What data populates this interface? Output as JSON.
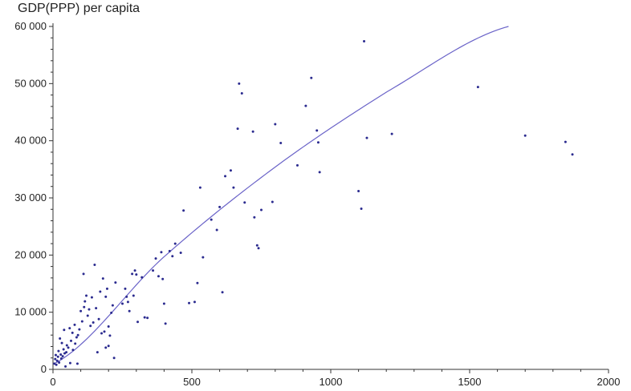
{
  "chart_data": {
    "type": "scatter",
    "title": "",
    "ylabel": "GDP(PPP) per capita",
    "xlabel": "",
    "xlim": [
      0,
      2000
    ],
    "ylim": [
      0,
      60000
    ],
    "xticks": [
      0,
      500,
      1000,
      1500,
      2000
    ],
    "xtick_labels": [
      "0",
      "500",
      "1000",
      "1500",
      "2000"
    ],
    "yticks": [
      0,
      10000,
      20000,
      30000,
      40000,
      50000,
      60000
    ],
    "ytick_labels": [
      "0",
      "10 000",
      "20 000",
      "30 000",
      "40 000",
      "50 000",
      "60 000"
    ],
    "grid": false,
    "colors": {
      "points": "#2b2b8f",
      "curve": "#6a63c8",
      "axis": "#333333"
    },
    "points": [
      [
        5,
        1000
      ],
      [
        8,
        1800
      ],
      [
        10,
        2500
      ],
      [
        12,
        800
      ],
      [
        15,
        1500
      ],
      [
        18,
        2200
      ],
      [
        20,
        3200
      ],
      [
        22,
        1200
      ],
      [
        25,
        5400
      ],
      [
        28,
        2600
      ],
      [
        30,
        1900
      ],
      [
        32,
        4600
      ],
      [
        35,
        2300
      ],
      [
        38,
        3500
      ],
      [
        40,
        6900
      ],
      [
        42,
        2800
      ],
      [
        45,
        500
      ],
      [
        48,
        3000
      ],
      [
        50,
        4200
      ],
      [
        55,
        3800
      ],
      [
        60,
        7200
      ],
      [
        62,
        1100
      ],
      [
        65,
        5000
      ],
      [
        70,
        6400
      ],
      [
        72,
        3400
      ],
      [
        78,
        7800
      ],
      [
        80,
        4500
      ],
      [
        85,
        5600
      ],
      [
        88,
        1000
      ],
      [
        90,
        6000
      ],
      [
        95,
        7000
      ],
      [
        100,
        10200
      ],
      [
        105,
        8400
      ],
      [
        110,
        16700
      ],
      [
        112,
        10900
      ],
      [
        115,
        11900
      ],
      [
        120,
        12900
      ],
      [
        125,
        9400
      ],
      [
        130,
        10500
      ],
      [
        135,
        7600
      ],
      [
        140,
        12600
      ],
      [
        145,
        8200
      ],
      [
        150,
        18300
      ],
      [
        155,
        10700
      ],
      [
        160,
        3000
      ],
      [
        165,
        8800
      ],
      [
        170,
        13600
      ],
      [
        175,
        6300
      ],
      [
        180,
        15900
      ],
      [
        185,
        6600
      ],
      [
        190,
        12700
      ],
      [
        195,
        14100
      ],
      [
        200,
        7500
      ],
      [
        205,
        5900
      ],
      [
        210,
        9900
      ],
      [
        215,
        11200
      ],
      [
        220,
        2000
      ],
      [
        225,
        15200
      ],
      [
        190,
        3800
      ],
      [
        200,
        4100
      ],
      [
        250,
        11500
      ],
      [
        260,
        14100
      ],
      [
        265,
        12700
      ],
      [
        270,
        11800
      ],
      [
        275,
        10200
      ],
      [
        285,
        16700
      ],
      [
        290,
        12900
      ],
      [
        295,
        17300
      ],
      [
        300,
        16600
      ],
      [
        305,
        8300
      ],
      [
        320,
        16100
      ],
      [
        330,
        9100
      ],
      [
        340,
        9000
      ],
      [
        360,
        17300
      ],
      [
        370,
        19400
      ],
      [
        380,
        16300
      ],
      [
        390,
        20500
      ],
      [
        395,
        15800
      ],
      [
        400,
        11500
      ],
      [
        405,
        8000
      ],
      [
        420,
        20700
      ],
      [
        430,
        19800
      ],
      [
        440,
        22000
      ],
      [
        460,
        20400
      ],
      [
        470,
        27800
      ],
      [
        490,
        11600
      ],
      [
        510,
        11800
      ],
      [
        520,
        15100
      ],
      [
        530,
        31800
      ],
      [
        540,
        19600
      ],
      [
        570,
        26200
      ],
      [
        590,
        24400
      ],
      [
        600,
        28400
      ],
      [
        610,
        13500
      ],
      [
        620,
        33800
      ],
      [
        640,
        34800
      ],
      [
        650,
        31800
      ],
      [
        665,
        42100
      ],
      [
        670,
        50000
      ],
      [
        680,
        48300
      ],
      [
        690,
        29200
      ],
      [
        720,
        41600
      ],
      [
        725,
        26600
      ],
      [
        735,
        21700
      ],
      [
        740,
        21200
      ],
      [
        750,
        27900
      ],
      [
        790,
        29300
      ],
      [
        800,
        42900
      ],
      [
        820,
        39600
      ],
      [
        880,
        35700
      ],
      [
        910,
        46100
      ],
      [
        930,
        51000
      ],
      [
        950,
        41800
      ],
      [
        955,
        39700
      ],
      [
        960,
        34500
      ],
      [
        1100,
        31200
      ],
      [
        1110,
        28100
      ],
      [
        1120,
        57400
      ],
      [
        1130,
        40500
      ],
      [
        1220,
        41200
      ],
      [
        1530,
        49400
      ],
      [
        1700,
        40900
      ],
      [
        1845,
        39800
      ],
      [
        1870,
        37600
      ]
    ],
    "trend": {
      "type": "fit_curve",
      "x_range": [
        0,
        1640
      ],
      "samples": [
        [
          0,
          900
        ],
        [
          400,
          19700
        ],
        [
          800,
          35400
        ],
        [
          1200,
          48500
        ],
        [
          1640,
          60000
        ]
      ]
    }
  }
}
